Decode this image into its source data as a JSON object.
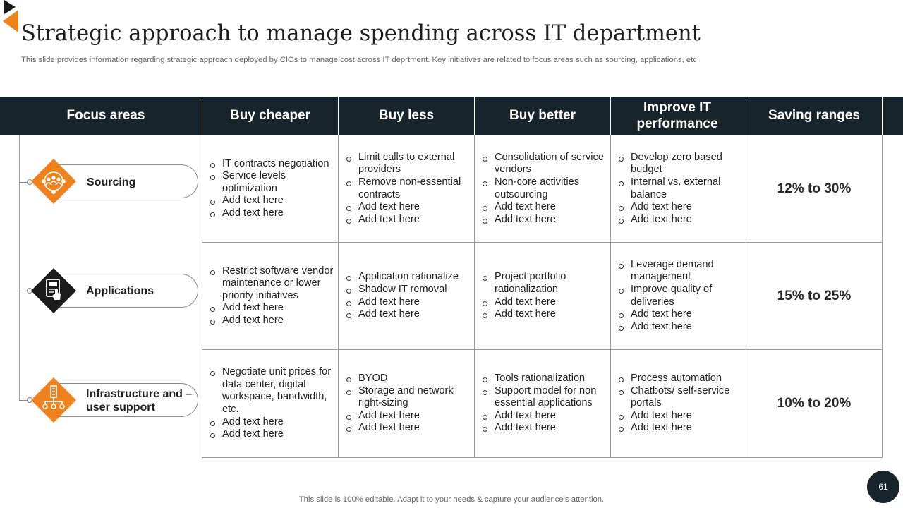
{
  "title": "Strategic approach to manage spending across IT department",
  "subtitle": "This slide provides information regarding strategic approach deployed by CIOs to manage cost across IT deprtment. Key initiatives are related to focus areas such as sourcing, applications, etc.",
  "columns": [
    "Focus areas",
    "Buy cheaper",
    "Buy less",
    "Buy better",
    "Improve IT performance",
    "Saving ranges"
  ],
  "rows": [
    {
      "focus": "Sourcing",
      "icon": "people-network-icon",
      "cheaper": [
        "IT contracts negotiation",
        "Service levels optimization",
        "Add text here",
        "Add text here"
      ],
      "less": [
        "Limit calls to external providers",
        "Remove non-essential contracts",
        "Add text here",
        "Add text here"
      ],
      "better": [
        "Consolidation of service vendors",
        "Non-core activities outsourcing",
        "Add text here",
        "Add text here"
      ],
      "improve": [
        "Develop zero based budget",
        "Internal vs. external balance",
        "Add text here",
        "Add text here"
      ],
      "saving": "12% to 30%"
    },
    {
      "focus": "Applications",
      "icon": "touch-screen-icon",
      "cheaper": [
        "Restrict software vendor maintenance or lower priority initiatives",
        "Add text here",
        "Add text here"
      ],
      "less": [
        "Application rationalize",
        "Shadow IT removal",
        "Add text here",
        "Add text here"
      ],
      "better": [
        "Project portfolio rationalization",
        "Add text here",
        "Add text here"
      ],
      "improve": [
        "Leverage demand management",
        "Improve quality of deliveries",
        "Add text here",
        "Add text here"
      ],
      "saving": "15% to 25%"
    },
    {
      "focus": "Infrastructure and – user support",
      "icon": "building-network-icon",
      "cheaper": [
        "Negotiate unit prices for data center, digital workspace, bandwidth, etc.",
        "Add text here",
        "Add text here"
      ],
      "less": [
        "BYOD",
        "Storage and network right-sizing",
        "Add text here",
        "Add text here"
      ],
      "better": [
        "Tools rationalization",
        "Support model for non essential applications",
        "Add text here",
        "Add text here"
      ],
      "improve": [
        "Process automation",
        "Chatbots/ self-service portals",
        "Add text here",
        "Add text here"
      ],
      "saving": "10% to 20%"
    }
  ],
  "footer": "This slide is 100% editable. Adapt it to your needs & capture your audience’s attention.",
  "page_number": "61",
  "colors": {
    "header": "#17242b",
    "accent": "#f0821e",
    "dark_icon": "#1b1b1b"
  }
}
